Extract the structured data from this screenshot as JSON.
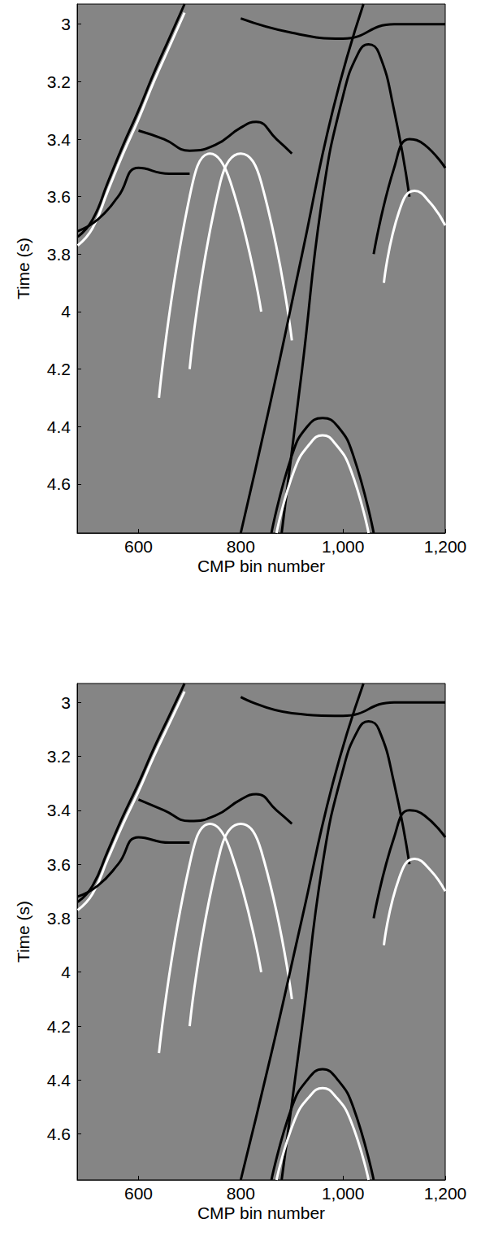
{
  "chart_data": [
    {
      "type": "line",
      "x_label": "CMP bin number",
      "y_label": "Time (s)",
      "xlim": [
        480,
        1200
      ],
      "xticks": [
        600,
        800,
        1000,
        1200
      ],
      "ylim": [
        2.93,
        4.77
      ],
      "yticks": [
        3,
        3.2,
        3.4,
        3.6,
        3.8,
        4,
        4.2,
        4.4,
        4.6
      ],
      "grid": false,
      "line_style": "solid",
      "series": [
        {
          "color": "#000000",
          "x": [
            481,
            510,
            540,
            570,
            600,
            630,
            660,
            690
          ],
          "values": [
            3.74,
            3.68,
            3.55,
            3.42,
            3.3,
            3.17,
            3.05,
            2.93
          ]
        },
        {
          "color": "#ffffff",
          "x": [
            481,
            510,
            540,
            570,
            600,
            630,
            660,
            690
          ],
          "values": [
            3.77,
            3.71,
            3.58,
            3.45,
            3.33,
            3.2,
            3.08,
            2.96
          ]
        },
        {
          "color": "#000000",
          "x": [
            600,
            650,
            700,
            750,
            800,
            830,
            870,
            900
          ],
          "values": [
            3.37,
            3.4,
            3.44,
            3.42,
            3.36,
            3.34,
            3.4,
            3.45
          ]
        },
        {
          "color": "#000000",
          "x": [
            481,
            520,
            560,
            600,
            660,
            700
          ],
          "values": [
            3.72,
            3.68,
            3.6,
            3.5,
            3.52,
            3.52
          ]
        },
        {
          "color": "#000000",
          "x": [
            800,
            900,
            1000,
            1100,
            1200
          ],
          "values": [
            2.98,
            3.03,
            3.05,
            3.0,
            3.0
          ]
        },
        {
          "color": "#ffffff",
          "x": [
            640,
            700,
            740,
            780,
            840
          ],
          "values": [
            4.3,
            3.6,
            3.45,
            3.55,
            4.0
          ]
        },
        {
          "color": "#ffffff",
          "x": [
            700,
            760,
            800,
            840,
            900
          ],
          "values": [
            4.2,
            3.55,
            3.45,
            3.55,
            4.1
          ]
        },
        {
          "color": "#000000",
          "x": [
            880,
            920,
            960,
            1000,
            1030,
            1050,
            1070,
            1100,
            1130
          ],
          "values": [
            4.77,
            4.2,
            3.6,
            3.25,
            3.1,
            3.07,
            3.1,
            3.3,
            3.6
          ]
        },
        {
          "color": "#000000",
          "x": [
            860,
            900,
            930,
            960,
            990,
            1020,
            1060
          ],
          "values": [
            4.77,
            4.5,
            4.4,
            4.37,
            4.4,
            4.5,
            4.77
          ]
        },
        {
          "color": "#ffffff",
          "x": [
            870,
            905,
            935,
            960,
            985,
            1015,
            1050
          ],
          "values": [
            4.77,
            4.55,
            4.46,
            4.43,
            4.46,
            4.55,
            4.77
          ]
        },
        {
          "color": "#000000",
          "x": [
            1060,
            1100,
            1130,
            1160,
            1200
          ],
          "values": [
            3.8,
            3.5,
            3.4,
            3.42,
            3.5
          ]
        },
        {
          "color": "#ffffff",
          "x": [
            1080,
            1110,
            1140,
            1170,
            1200
          ],
          "values": [
            3.9,
            3.65,
            3.58,
            3.62,
            3.7
          ]
        },
        {
          "color": "#000000",
          "x": [
            800,
            860,
            920,
            980,
            1040
          ],
          "values": [
            4.77,
            4.3,
            3.8,
            3.3,
            2.93
          ]
        }
      ]
    },
    {
      "type": "line",
      "x_label": "CMP bin number",
      "y_label": "Time (s)",
      "xlim": [
        480,
        1200
      ],
      "xticks": [
        600,
        800,
        1000,
        1200
      ],
      "ylim": [
        2.93,
        4.77
      ],
      "yticks": [
        3,
        3.2,
        3.4,
        3.6,
        3.8,
        4,
        4.2,
        4.4,
        4.6
      ],
      "grid": false,
      "line_style": "solid",
      "series": [
        {
          "color": "#000000",
          "x": [
            481,
            510,
            540,
            570,
            600,
            630,
            660,
            690
          ],
          "values": [
            3.74,
            3.68,
            3.55,
            3.42,
            3.3,
            3.17,
            3.05,
            2.93
          ]
        },
        {
          "color": "#ffffff",
          "x": [
            481,
            510,
            540,
            570,
            600,
            630,
            660,
            690
          ],
          "values": [
            3.77,
            3.71,
            3.58,
            3.45,
            3.33,
            3.2,
            3.08,
            2.96
          ]
        },
        {
          "color": "#000000",
          "x": [
            600,
            650,
            700,
            750,
            800,
            830,
            870,
            900
          ],
          "values": [
            3.36,
            3.4,
            3.44,
            3.42,
            3.36,
            3.34,
            3.4,
            3.45
          ]
        },
        {
          "color": "#000000",
          "x": [
            481,
            520,
            560,
            600,
            660,
            700
          ],
          "values": [
            3.72,
            3.68,
            3.6,
            3.5,
            3.52,
            3.52
          ]
        },
        {
          "color": "#000000",
          "x": [
            800,
            900,
            1000,
            1100,
            1200
          ],
          "values": [
            2.98,
            3.04,
            3.05,
            3.0,
            3.0
          ]
        },
        {
          "color": "#ffffff",
          "x": [
            640,
            700,
            740,
            780,
            840
          ],
          "values": [
            4.3,
            3.6,
            3.45,
            3.55,
            4.0
          ]
        },
        {
          "color": "#ffffff",
          "x": [
            700,
            760,
            800,
            840,
            900
          ],
          "values": [
            4.2,
            3.55,
            3.45,
            3.55,
            4.1
          ]
        },
        {
          "color": "#000000",
          "x": [
            880,
            920,
            960,
            1000,
            1030,
            1050,
            1070,
            1100,
            1130
          ],
          "values": [
            4.77,
            4.2,
            3.6,
            3.25,
            3.1,
            3.07,
            3.1,
            3.3,
            3.6
          ]
        },
        {
          "color": "#000000",
          "x": [
            860,
            900,
            930,
            960,
            990,
            1020,
            1060
          ],
          "values": [
            4.77,
            4.5,
            4.4,
            4.36,
            4.4,
            4.5,
            4.77
          ]
        },
        {
          "color": "#ffffff",
          "x": [
            870,
            905,
            935,
            960,
            985,
            1015,
            1050
          ],
          "values": [
            4.77,
            4.55,
            4.46,
            4.43,
            4.46,
            4.55,
            4.77
          ]
        },
        {
          "color": "#000000",
          "x": [
            1060,
            1100,
            1130,
            1160,
            1200
          ],
          "values": [
            3.8,
            3.5,
            3.4,
            3.42,
            3.5
          ]
        },
        {
          "color": "#ffffff",
          "x": [
            1080,
            1110,
            1140,
            1170,
            1200
          ],
          "values": [
            3.9,
            3.65,
            3.58,
            3.62,
            3.7
          ]
        },
        {
          "color": "#000000",
          "x": [
            800,
            860,
            920,
            980,
            1040
          ],
          "values": [
            4.77,
            4.3,
            3.8,
            3.3,
            2.93
          ]
        }
      ]
    }
  ]
}
